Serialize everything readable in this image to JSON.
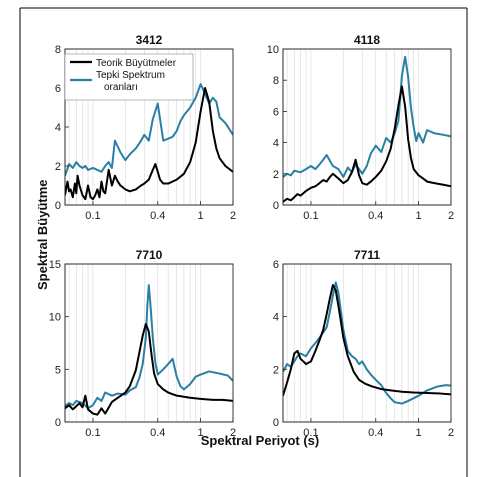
{
  "figure": {
    "ylabel": "Spektral Büyütme",
    "xlabel": "Spektral Periyot (s)"
  },
  "colors": {
    "teorik": "#000000",
    "tepki": "#2b7fa3",
    "border": "#000000"
  },
  "legend": {
    "items": [
      "Teorik Büyütmeler",
      "Tepki Spektrum oranları"
    ]
  },
  "chart_data": [
    {
      "type": "line",
      "title": "3412",
      "xscale": "log",
      "xlim": [
        0.055,
        2
      ],
      "ylim": [
        0,
        8
      ],
      "xticks": [
        0.1,
        0.4,
        1,
        2
      ],
      "xtick_labels": [
        "0.1",
        "0.4",
        "1",
        "2"
      ],
      "yticks": [
        0,
        2,
        4,
        6,
        8
      ],
      "grid": "x-minor",
      "legend": "top-left",
      "series": [
        {
          "name": "Teorik Büyütmeler",
          "color": "#000000",
          "x": [
            0.055,
            0.058,
            0.06,
            0.062,
            0.065,
            0.068,
            0.07,
            0.072,
            0.075,
            0.08,
            0.085,
            0.09,
            0.095,
            0.1,
            0.105,
            0.11,
            0.115,
            0.12,
            0.125,
            0.13,
            0.14,
            0.15,
            0.16,
            0.17,
            0.18,
            0.2,
            0.22,
            0.25,
            0.28,
            0.3,
            0.33,
            0.36,
            0.38,
            0.4,
            0.42,
            0.45,
            0.5,
            0.6,
            0.7,
            0.8,
            0.9,
            1.0,
            1.1,
            1.2,
            1.3,
            1.4,
            1.5,
            1.7,
            2.0
          ],
          "y": [
            0.5,
            1.2,
            0.7,
            0.8,
            0.4,
            1.1,
            0.6,
            1.5,
            1.0,
            0.5,
            0.3,
            1.0,
            0.4,
            0.3,
            0.5,
            0.8,
            0.4,
            1.2,
            0.7,
            0.6,
            1.8,
            1.0,
            1.5,
            1.2,
            1.0,
            0.8,
            0.7,
            0.8,
            1.0,
            1.1,
            1.3,
            1.8,
            2.1,
            1.7,
            1.3,
            1.1,
            1.1,
            1.3,
            1.6,
            2.2,
            3.2,
            4.8,
            6.0,
            5.3,
            3.8,
            2.9,
            2.4,
            2.0,
            1.7
          ]
        },
        {
          "name": "Tepki Spektrum oranları",
          "color": "#2b7fa3",
          "x": [
            0.055,
            0.06,
            0.065,
            0.07,
            0.075,
            0.08,
            0.085,
            0.09,
            0.1,
            0.11,
            0.12,
            0.13,
            0.14,
            0.15,
            0.16,
            0.17,
            0.18,
            0.2,
            0.22,
            0.25,
            0.28,
            0.3,
            0.33,
            0.36,
            0.4,
            0.45,
            0.5,
            0.55,
            0.6,
            0.65,
            0.7,
            0.8,
            0.9,
            1.0,
            1.1,
            1.2,
            1.3,
            1.4,
            1.5,
            1.7,
            2.0
          ],
          "y": [
            1.5,
            2.1,
            1.9,
            2.2,
            2.0,
            1.9,
            2.0,
            1.8,
            1.9,
            1.8,
            1.7,
            2.0,
            2.2,
            1.9,
            3.3,
            3.0,
            2.7,
            2.3,
            2.6,
            2.9,
            3.3,
            3.6,
            3.3,
            4.4,
            5.2,
            3.3,
            3.4,
            3.5,
            3.8,
            4.3,
            4.6,
            5.0,
            5.5,
            6.2,
            5.7,
            5.2,
            5.5,
            5.3,
            4.5,
            4.2,
            3.6
          ]
        }
      ]
    },
    {
      "type": "line",
      "title": "4118",
      "xscale": "log",
      "xlim": [
        0.055,
        2
      ],
      "ylim": [
        0,
        10
      ],
      "xticks": [
        0.1,
        0.4,
        1,
        2
      ],
      "xtick_labels": [
        "0.1",
        "0.4",
        "1",
        "2"
      ],
      "yticks": [
        0,
        2,
        4,
        6,
        8,
        10
      ],
      "grid": "x-minor",
      "series": [
        {
          "name": "Teorik Büyütmeler",
          "color": "#000000",
          "x": [
            0.055,
            0.06,
            0.065,
            0.07,
            0.075,
            0.08,
            0.09,
            0.1,
            0.11,
            0.12,
            0.13,
            0.14,
            0.15,
            0.16,
            0.18,
            0.2,
            0.22,
            0.24,
            0.26,
            0.28,
            0.3,
            0.33,
            0.36,
            0.4,
            0.45,
            0.5,
            0.55,
            0.6,
            0.65,
            0.7,
            0.75,
            0.8,
            0.85,
            0.9,
            1.0,
            1.1,
            1.2,
            1.4,
            1.7,
            2.0
          ],
          "y": [
            0.2,
            0.4,
            0.3,
            0.5,
            0.7,
            0.6,
            0.9,
            1.1,
            1.2,
            1.4,
            1.6,
            1.5,
            1.8,
            2.0,
            1.7,
            1.4,
            1.6,
            2.1,
            2.9,
            1.9,
            1.4,
            1.3,
            1.5,
            1.8,
            2.2,
            2.8,
            3.6,
            4.9,
            6.4,
            7.6,
            6.3,
            4.2,
            3.0,
            2.3,
            1.9,
            1.7,
            1.5,
            1.4,
            1.3,
            1.2
          ]
        },
        {
          "name": "Tepki Spektrum oranları",
          "color": "#2b7fa3",
          "x": [
            0.055,
            0.06,
            0.065,
            0.07,
            0.08,
            0.09,
            0.1,
            0.11,
            0.12,
            0.13,
            0.14,
            0.16,
            0.18,
            0.2,
            0.22,
            0.24,
            0.26,
            0.28,
            0.3,
            0.33,
            0.36,
            0.4,
            0.45,
            0.5,
            0.55,
            0.6,
            0.65,
            0.7,
            0.75,
            0.8,
            0.85,
            0.9,
            0.95,
            1.0,
            1.1,
            1.2,
            1.4,
            1.7,
            2.0
          ],
          "y": [
            1.8,
            2.0,
            1.9,
            2.2,
            2.1,
            2.3,
            2.5,
            2.3,
            2.6,
            2.9,
            3.2,
            2.5,
            2.3,
            1.8,
            2.4,
            2.1,
            2.6,
            2.3,
            2.0,
            2.5,
            3.3,
            3.8,
            3.4,
            4.3,
            4.0,
            4.6,
            5.4,
            8.3,
            9.5,
            8.2,
            6.2,
            5.0,
            4.1,
            4.6,
            4.0,
            4.8,
            4.6,
            4.5,
            4.4
          ]
        }
      ]
    },
    {
      "type": "line",
      "title": "7710",
      "xscale": "log",
      "xlim": [
        0.055,
        2
      ],
      "ylim": [
        0,
        15
      ],
      "xticks": [
        0.1,
        0.4,
        1,
        2
      ],
      "xtick_labels": [
        "0.1",
        "0.4",
        "1",
        "2"
      ],
      "yticks": [
        0,
        5,
        10,
        15
      ],
      "grid": "x-minor",
      "series": [
        {
          "name": "Teorik Büyütmeler",
          "color": "#000000",
          "x": [
            0.055,
            0.06,
            0.065,
            0.07,
            0.075,
            0.08,
            0.085,
            0.09,
            0.1,
            0.11,
            0.12,
            0.13,
            0.15,
            0.17,
            0.2,
            0.22,
            0.25,
            0.27,
            0.29,
            0.31,
            0.33,
            0.35,
            0.37,
            0.4,
            0.45,
            0.5,
            0.6,
            0.7,
            0.8,
            1.0,
            1.3,
            1.6,
            2.0
          ],
          "y": [
            1.3,
            1.6,
            1.2,
            1.5,
            1.8,
            1.4,
            2.5,
            1.2,
            0.8,
            0.7,
            1.3,
            0.8,
            1.9,
            2.3,
            2.8,
            3.4,
            4.9,
            6.6,
            8.2,
            9.3,
            8.6,
            6.4,
            4.6,
            3.6,
            3.1,
            2.8,
            2.5,
            2.4,
            2.3,
            2.2,
            2.1,
            2.1,
            2.0
          ]
        },
        {
          "name": "Tepki Spektrum oranları",
          "color": "#2b7fa3",
          "x": [
            0.055,
            0.06,
            0.065,
            0.07,
            0.08,
            0.09,
            0.1,
            0.11,
            0.12,
            0.13,
            0.15,
            0.17,
            0.2,
            0.22,
            0.25,
            0.27,
            0.29,
            0.31,
            0.32,
            0.33,
            0.34,
            0.36,
            0.38,
            0.4,
            0.45,
            0.5,
            0.55,
            0.6,
            0.65,
            0.7,
            0.8,
            0.9,
            1.0,
            1.2,
            1.5,
            1.8,
            2.0
          ],
          "y": [
            1.5,
            1.8,
            1.6,
            2.0,
            1.8,
            1.3,
            1.6,
            2.3,
            2.0,
            2.8,
            2.5,
            2.7,
            2.6,
            3.0,
            3.3,
            4.2,
            5.5,
            8.0,
            11.0,
            13.0,
            11.5,
            8.0,
            5.6,
            4.5,
            5.0,
            5.5,
            6.0,
            4.3,
            3.4,
            3.1,
            3.6,
            4.3,
            4.5,
            4.8,
            4.6,
            4.4,
            3.9
          ]
        }
      ]
    },
    {
      "type": "line",
      "title": "7711",
      "xscale": "log",
      "xlim": [
        0.055,
        2
      ],
      "ylim": [
        0,
        6
      ],
      "xticks": [
        0.1,
        0.4,
        1,
        2
      ],
      "xtick_labels": [
        "0.1",
        "0.4",
        "1",
        "2"
      ],
      "yticks": [
        0,
        2,
        4,
        6
      ],
      "grid": "x-minor",
      "series": [
        {
          "name": "Teorik Büyütmeler",
          "color": "#000000",
          "x": [
            0.055,
            0.06,
            0.065,
            0.07,
            0.075,
            0.08,
            0.085,
            0.09,
            0.1,
            0.11,
            0.12,
            0.13,
            0.14,
            0.15,
            0.16,
            0.17,
            0.18,
            0.19,
            0.2,
            0.22,
            0.25,
            0.28,
            0.32,
            0.37,
            0.45,
            0.55,
            0.7,
            0.9,
            1.2,
            1.6,
            2.0
          ],
          "y": [
            1.0,
            1.5,
            2.0,
            2.6,
            2.7,
            2.4,
            2.3,
            2.2,
            2.3,
            2.7,
            3.1,
            3.5,
            4.1,
            4.7,
            5.2,
            5.0,
            4.4,
            3.8,
            3.2,
            2.5,
            1.9,
            1.6,
            1.45,
            1.35,
            1.25,
            1.2,
            1.15,
            1.12,
            1.1,
            1.08,
            1.05
          ]
        },
        {
          "name": "Tepki Spektrum oranları",
          "color": "#2b7fa3",
          "x": [
            0.055,
            0.06,
            0.065,
            0.07,
            0.075,
            0.08,
            0.09,
            0.1,
            0.11,
            0.12,
            0.13,
            0.14,
            0.15,
            0.16,
            0.17,
            0.18,
            0.19,
            0.2,
            0.22,
            0.24,
            0.26,
            0.28,
            0.3,
            0.33,
            0.36,
            0.4,
            0.45,
            0.5,
            0.55,
            0.6,
            0.7,
            0.8,
            1.0,
            1.2,
            1.5,
            1.8,
            2.0
          ],
          "y": [
            1.9,
            2.2,
            2.1,
            2.3,
            2.5,
            2.6,
            2.5,
            2.8,
            3.0,
            3.2,
            3.4,
            3.6,
            4.2,
            4.8,
            5.3,
            4.9,
            4.2,
            3.5,
            2.7,
            2.5,
            2.4,
            2.2,
            2.3,
            2.0,
            1.8,
            1.6,
            1.4,
            1.1,
            0.9,
            0.75,
            0.7,
            0.8,
            1.0,
            1.2,
            1.35,
            1.4,
            1.38
          ]
        }
      ]
    }
  ]
}
